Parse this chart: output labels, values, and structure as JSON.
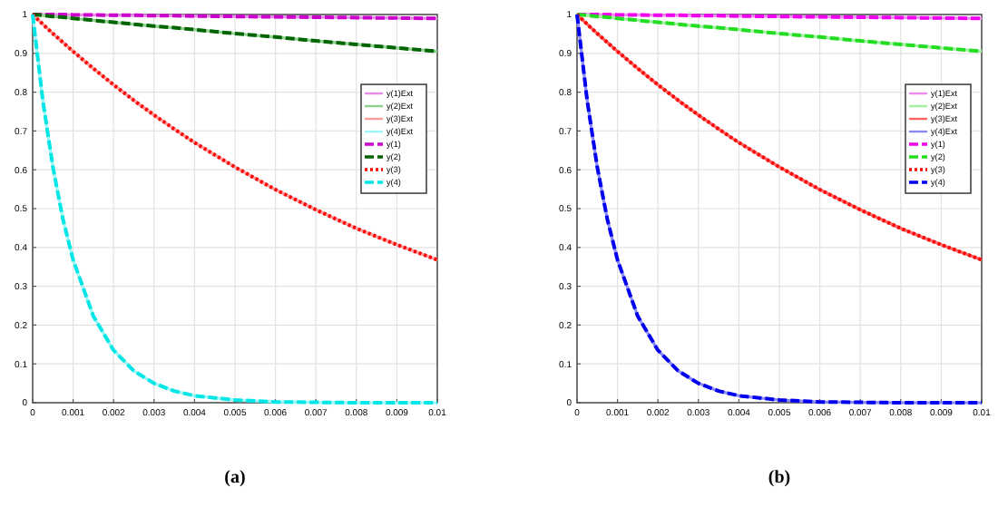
{
  "chart_data": [
    {
      "type": "line",
      "annotations": [
        "(a)"
      ],
      "x": [
        0,
        0.00025,
        0.0005,
        0.00075,
        0.001,
        0.0015,
        0.002,
        0.0025,
        0.003,
        0.0035,
        0.004,
        0.005,
        0.006,
        0.007,
        0.008,
        0.009,
        0.01
      ],
      "xlim": [
        0,
        0.01
      ],
      "ylim": [
        0,
        1
      ],
      "xticks": [
        0,
        0.001,
        0.002,
        0.003,
        0.004,
        0.005,
        0.006,
        0.007,
        0.008,
        0.009,
        0.01
      ],
      "yticks": [
        0,
        0.1,
        0.2,
        0.3,
        0.4,
        0.5,
        0.6,
        0.7,
        0.8,
        0.9,
        1
      ],
      "grid": true,
      "legend": "right",
      "marker": "none",
      "series": [
        {
          "name": "y(1)Ext",
          "color": "#e58ae5",
          "line_style": "solid",
          "values": [
            1,
            1,
            1,
            1,
            0.999,
            0.999,
            0.998,
            0.998,
            0.997,
            0.997,
            0.996,
            0.995,
            0.994,
            0.993,
            0.992,
            0.991,
            0.99
          ]
        },
        {
          "name": "y(2)Ext",
          "color": "#8fd08f",
          "line_style": "solid",
          "values": [
            1,
            0.998,
            0.995,
            0.993,
            0.99,
            0.985,
            0.98,
            0.975,
            0.97,
            0.966,
            0.961,
            0.951,
            0.942,
            0.932,
            0.923,
            0.914,
            0.905
          ]
        },
        {
          "name": "y(3)Ext",
          "color": "#ff9a9a",
          "line_style": "solid",
          "values": [
            1,
            0.975,
            0.951,
            0.928,
            0.905,
            0.861,
            0.819,
            0.779,
            0.741,
            0.705,
            0.67,
            0.607,
            0.549,
            0.497,
            0.449,
            0.407,
            0.368
          ]
        },
        {
          "name": "y(4)Ext",
          "color": "#9af5f5",
          "line_style": "solid",
          "values": [
            1,
            0.779,
            0.607,
            0.472,
            0.368,
            0.223,
            0.135,
            0.082,
            0.05,
            0.03,
            0.018,
            0.007,
            0.002,
            0.001,
            0,
            0,
            0
          ]
        },
        {
          "name": "y(1)",
          "color": "#cc00cc",
          "line_style": "dashed",
          "values": [
            1,
            1,
            1,
            1,
            0.999,
            0.999,
            0.998,
            0.998,
            0.997,
            0.997,
            0.996,
            0.995,
            0.994,
            0.993,
            0.992,
            0.991,
            0.99
          ]
        },
        {
          "name": "y(2)",
          "color": "#006400",
          "line_style": "dashed",
          "values": [
            1,
            0.998,
            0.995,
            0.993,
            0.99,
            0.985,
            0.98,
            0.975,
            0.97,
            0.966,
            0.961,
            0.951,
            0.942,
            0.932,
            0.923,
            0.914,
            0.905
          ]
        },
        {
          "name": "y(3)",
          "color": "#ff0000",
          "line_style": "dotted",
          "values": [
            1,
            0.975,
            0.951,
            0.928,
            0.905,
            0.861,
            0.819,
            0.779,
            0.741,
            0.705,
            0.67,
            0.607,
            0.549,
            0.497,
            0.449,
            0.407,
            0.368
          ]
        },
        {
          "name": "y(4)",
          "color": "#00e5e5",
          "line_style": "dashed",
          "values": [
            1,
            0.779,
            0.607,
            0.472,
            0.368,
            0.223,
            0.135,
            0.082,
            0.05,
            0.03,
            0.018,
            0.007,
            0.002,
            0.001,
            0,
            0,
            0
          ]
        }
      ]
    },
    {
      "type": "line",
      "annotations": [
        "(b)"
      ],
      "x": [
        0,
        0.00025,
        0.0005,
        0.00075,
        0.001,
        0.0015,
        0.002,
        0.0025,
        0.003,
        0.0035,
        0.004,
        0.005,
        0.006,
        0.007,
        0.008,
        0.009,
        0.01
      ],
      "xlim": [
        0,
        0.01
      ],
      "ylim": [
        0,
        1
      ],
      "xticks": [
        0,
        0.001,
        0.002,
        0.003,
        0.004,
        0.005,
        0.006,
        0.007,
        0.008,
        0.009,
        0.01
      ],
      "yticks": [
        0,
        0.1,
        0.2,
        0.3,
        0.4,
        0.5,
        0.6,
        0.7,
        0.8,
        0.9,
        1
      ],
      "grid": true,
      "legend": "right",
      "marker": "none",
      "series": [
        {
          "name": "y(1)Ext",
          "color": "#f08af0",
          "line_style": "solid",
          "values": [
            1,
            1,
            1,
            1,
            0.999,
            0.999,
            0.998,
            0.998,
            0.997,
            0.997,
            0.996,
            0.995,
            0.994,
            0.993,
            0.992,
            0.991,
            0.99
          ]
        },
        {
          "name": "y(2)Ext",
          "color": "#a0f0a0",
          "line_style": "solid",
          "values": [
            1,
            0.998,
            0.995,
            0.993,
            0.99,
            0.985,
            0.98,
            0.975,
            0.97,
            0.966,
            0.961,
            0.951,
            0.942,
            0.932,
            0.923,
            0.914,
            0.905
          ]
        },
        {
          "name": "y(3)Ext",
          "color": "#ff6060",
          "line_style": "solid",
          "values": [
            1,
            0.975,
            0.951,
            0.928,
            0.905,
            0.861,
            0.819,
            0.779,
            0.741,
            0.705,
            0.67,
            0.607,
            0.549,
            0.497,
            0.449,
            0.407,
            0.368
          ]
        },
        {
          "name": "y(4)Ext",
          "color": "#8a8af5",
          "line_style": "solid",
          "values": [
            1,
            0.779,
            0.607,
            0.472,
            0.368,
            0.223,
            0.135,
            0.082,
            0.05,
            0.03,
            0.018,
            0.007,
            0.002,
            0.001,
            0,
            0,
            0
          ]
        },
        {
          "name": "y(1)",
          "color": "#ee00ee",
          "line_style": "dashed",
          "values": [
            1,
            1,
            1,
            1,
            0.999,
            0.999,
            0.998,
            0.998,
            0.997,
            0.997,
            0.996,
            0.995,
            0.994,
            0.993,
            0.992,
            0.991,
            0.99
          ]
        },
        {
          "name": "y(2)",
          "color": "#22dd22",
          "line_style": "dashed",
          "values": [
            1,
            0.998,
            0.995,
            0.993,
            0.99,
            0.985,
            0.98,
            0.975,
            0.97,
            0.966,
            0.961,
            0.951,
            0.942,
            0.932,
            0.923,
            0.914,
            0.905
          ]
        },
        {
          "name": "y(3)",
          "color": "#ff0000",
          "line_style": "dotted",
          "values": [
            1,
            0.975,
            0.951,
            0.928,
            0.905,
            0.861,
            0.819,
            0.779,
            0.741,
            0.705,
            0.67,
            0.607,
            0.549,
            0.497,
            0.449,
            0.407,
            0.368
          ]
        },
        {
          "name": "y(4)",
          "color": "#0000ee",
          "line_style": "dashed",
          "values": [
            1,
            0.779,
            0.607,
            0.472,
            0.368,
            0.223,
            0.135,
            0.082,
            0.05,
            0.03,
            0.018,
            0.007,
            0.002,
            0.001,
            0,
            0,
            0
          ]
        }
      ]
    }
  ]
}
